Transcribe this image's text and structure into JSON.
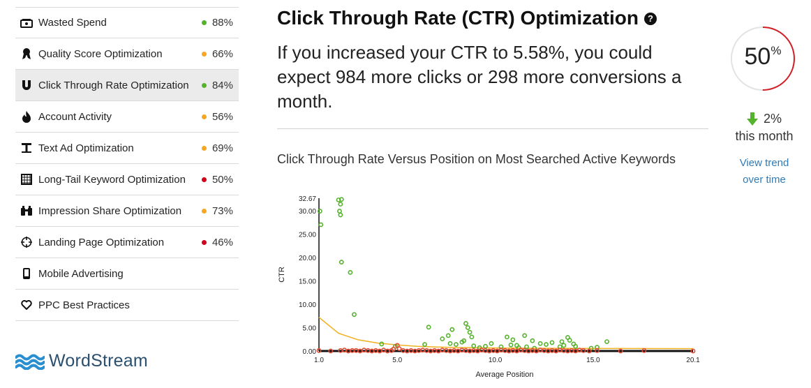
{
  "colors": {
    "good": "#55b22c",
    "warn": "#f5a623",
    "bad": "#d0021b",
    "accent": "#d21f25",
    "link": "#2e7bb8"
  },
  "sidebar": {
    "items": [
      {
        "label": "Wasted Spend",
        "score": "88%",
        "status": "good",
        "icon": "money-icon"
      },
      {
        "label": "Quality Score Optimization",
        "score": "66%",
        "status": "warn",
        "icon": "ribbon-icon"
      },
      {
        "label": "Click Through Rate Optimization",
        "score": "84%",
        "status": "good",
        "icon": "magnet-icon",
        "active": true
      },
      {
        "label": "Account Activity",
        "score": "56%",
        "status": "warn",
        "icon": "flame-icon"
      },
      {
        "label": "Text Ad Optimization",
        "score": "69%",
        "status": "warn",
        "icon": "text-icon"
      },
      {
        "label": "Long-Tail Keyword Optimization",
        "score": "50%",
        "status": "bad",
        "icon": "grid-icon"
      },
      {
        "label": "Impression Share Optimization",
        "score": "73%",
        "status": "warn",
        "icon": "binoculars-icon"
      },
      {
        "label": "Landing Page Optimization",
        "score": "46%",
        "status": "bad",
        "icon": "target-icon"
      },
      {
        "label": "Mobile Advertising",
        "score": "",
        "status": "",
        "icon": "mobile-icon"
      },
      {
        "label": "PPC Best Practices",
        "score": "",
        "status": "",
        "icon": "heart-icon"
      }
    ]
  },
  "logo": {
    "text": "WordStream"
  },
  "main": {
    "title": "Click Through Rate (CTR) Optimization",
    "help": "?",
    "summary": "If you increased your CTR to 5.58%, you could expect 984 more clicks or 298 more conversions a month.",
    "chart_title": "Click Through Rate Versus Position on Most Searched Active Keywords"
  },
  "score": {
    "value": "50",
    "unit": "%",
    "percent": 50,
    "change": "2%",
    "period": "this month",
    "link": "View trend over time"
  },
  "chart_data": {
    "type": "scatter",
    "xlabel": "Average Position",
    "ylabel": "CTR",
    "xlim": [
      1.0,
      20.1
    ],
    "ylim": [
      0,
      32.67
    ],
    "xticks": [
      "1.0",
      "5.0",
      "10.0",
      "15.0",
      "20.1"
    ],
    "yticks": [
      "0.00",
      "5.00",
      "10.00",
      "15.00",
      "20.00",
      "25.00",
      "30.00",
      "32.67"
    ],
    "trend_line": {
      "x": [
        1.0,
        2.0,
        3.0,
        4.0,
        5.0,
        6.0,
        7.0,
        8.0,
        10.0,
        12.0,
        15.0,
        20.1
      ],
      "y": [
        7.2,
        3.8,
        2.4,
        1.7,
        1.3,
        1.0,
        0.85,
        0.75,
        0.65,
        0.6,
        0.55,
        0.5
      ]
    },
    "series": [
      {
        "color": "#55b22c",
        "points": [
          [
            1.05,
            29.9
          ],
          [
            1.1,
            27.0
          ],
          [
            2.0,
            32.3
          ],
          [
            2.1,
            31.4
          ],
          [
            2.15,
            32.4
          ],
          [
            2.05,
            29.9
          ],
          [
            2.1,
            29.1
          ],
          [
            2.15,
            19.0
          ],
          [
            2.6,
            16.8
          ],
          [
            2.8,
            7.8
          ],
          [
            4.2,
            1.5
          ],
          [
            4.9,
            1.0
          ],
          [
            6.4,
            1.4
          ],
          [
            6.6,
            5.1
          ],
          [
            7.3,
            2.6
          ],
          [
            7.6,
            3.3
          ],
          [
            7.8,
            4.6
          ],
          [
            7.7,
            1.6
          ],
          [
            8.0,
            1.4
          ],
          [
            8.3,
            1.9
          ],
          [
            8.5,
            5.9
          ],
          [
            8.6,
            5.0
          ],
          [
            8.7,
            4.0
          ],
          [
            8.8,
            3.0
          ],
          [
            8.4,
            2.2
          ],
          [
            8.9,
            1.1
          ],
          [
            9.2,
            0.7
          ],
          [
            9.8,
            1.6
          ],
          [
            10.3,
            0.9
          ],
          [
            10.6,
            3.0
          ],
          [
            10.9,
            2.4
          ],
          [
            11.2,
            0.7
          ],
          [
            11.5,
            3.3
          ],
          [
            11.6,
            0.9
          ],
          [
            11.9,
            2.2
          ],
          [
            12.3,
            1.6
          ],
          [
            12.6,
            1.4
          ],
          [
            12.9,
            1.8
          ],
          [
            13.3,
            0.9
          ],
          [
            13.4,
            2.0
          ],
          [
            13.5,
            1.2
          ],
          [
            13.7,
            2.9
          ],
          [
            13.8,
            2.3
          ],
          [
            14.0,
            1.5
          ],
          [
            14.1,
            1.0
          ],
          [
            14.9,
            0.6
          ],
          [
            15.2,
            0.8
          ],
          [
            15.7,
            2.0
          ],
          [
            11.1,
            1.2
          ],
          [
            12.0,
            0.6
          ],
          [
            9.5,
            1.0
          ],
          [
            10.8,
            1.3
          ]
        ]
      },
      {
        "color": "#e24a33",
        "points": [
          [
            1.0,
            0.1
          ],
          [
            1.6,
            0.0
          ],
          [
            2.1,
            0.1
          ],
          [
            2.3,
            0.2
          ],
          [
            2.5,
            0.0
          ],
          [
            2.7,
            0.1
          ],
          [
            2.9,
            0.1
          ],
          [
            3.1,
            0.0
          ],
          [
            3.3,
            0.2
          ],
          [
            3.5,
            0.1
          ],
          [
            3.7,
            0.0
          ],
          [
            3.9,
            0.1
          ],
          [
            4.1,
            0.0
          ],
          [
            4.3,
            0.2
          ],
          [
            4.5,
            0.0
          ],
          [
            4.7,
            0.1
          ],
          [
            4.8,
            0.4
          ],
          [
            5.0,
            1.2
          ],
          [
            5.1,
            0.5
          ],
          [
            5.3,
            0.1
          ],
          [
            5.5,
            0.0
          ],
          [
            5.7,
            0.1
          ],
          [
            5.9,
            0.0
          ],
          [
            6.1,
            0.1
          ],
          [
            6.3,
            0.2
          ],
          [
            6.5,
            0.1
          ],
          [
            6.7,
            0.0
          ],
          [
            6.9,
            0.1
          ],
          [
            7.1,
            0.0
          ],
          [
            7.3,
            0.2
          ],
          [
            7.5,
            0.1
          ],
          [
            7.7,
            0.0
          ],
          [
            7.9,
            0.1
          ],
          [
            8.1,
            0.0
          ],
          [
            8.3,
            0.2
          ],
          [
            8.5,
            0.1
          ],
          [
            8.7,
            0.0
          ],
          [
            8.9,
            0.1
          ],
          [
            9.1,
            0.0
          ],
          [
            9.3,
            0.2
          ],
          [
            9.5,
            0.1
          ],
          [
            9.7,
            0.0
          ],
          [
            9.9,
            0.1
          ],
          [
            10.1,
            0.0
          ],
          [
            10.3,
            0.2
          ],
          [
            10.5,
            0.1
          ],
          [
            10.7,
            0.0
          ],
          [
            10.9,
            0.1
          ],
          [
            11.1,
            0.0
          ],
          [
            11.3,
            0.2
          ],
          [
            11.5,
            0.1
          ],
          [
            11.7,
            0.0
          ],
          [
            11.9,
            0.1
          ],
          [
            12.1,
            0.0
          ],
          [
            12.3,
            0.2
          ],
          [
            12.5,
            0.1
          ],
          [
            12.7,
            0.0
          ],
          [
            12.9,
            0.1
          ],
          [
            13.1,
            0.0
          ],
          [
            13.3,
            0.2
          ],
          [
            13.5,
            0.1
          ],
          [
            13.7,
            0.0
          ],
          [
            13.9,
            0.1
          ],
          [
            14.1,
            0.0
          ],
          [
            14.3,
            0.2
          ],
          [
            14.5,
            0.1
          ],
          [
            14.8,
            0.0
          ],
          [
            15.2,
            0.1
          ],
          [
            16.4,
            0.0
          ],
          [
            17.6,
            0.1
          ],
          [
            20.1,
            0.0
          ]
        ]
      }
    ]
  }
}
